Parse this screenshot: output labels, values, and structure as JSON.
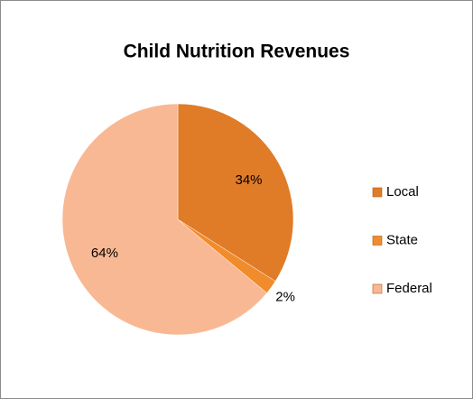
{
  "chart_data": {
    "type": "pie",
    "title": "Child Nutrition Revenues",
    "categories": [
      "Local",
      "State",
      "Federal"
    ],
    "values": [
      34,
      2,
      64
    ],
    "value_labels": [
      "34%",
      "2%",
      "64%"
    ],
    "colors": [
      "#e07b28",
      "#f08c2c",
      "#f9b894"
    ],
    "legend": "right"
  }
}
